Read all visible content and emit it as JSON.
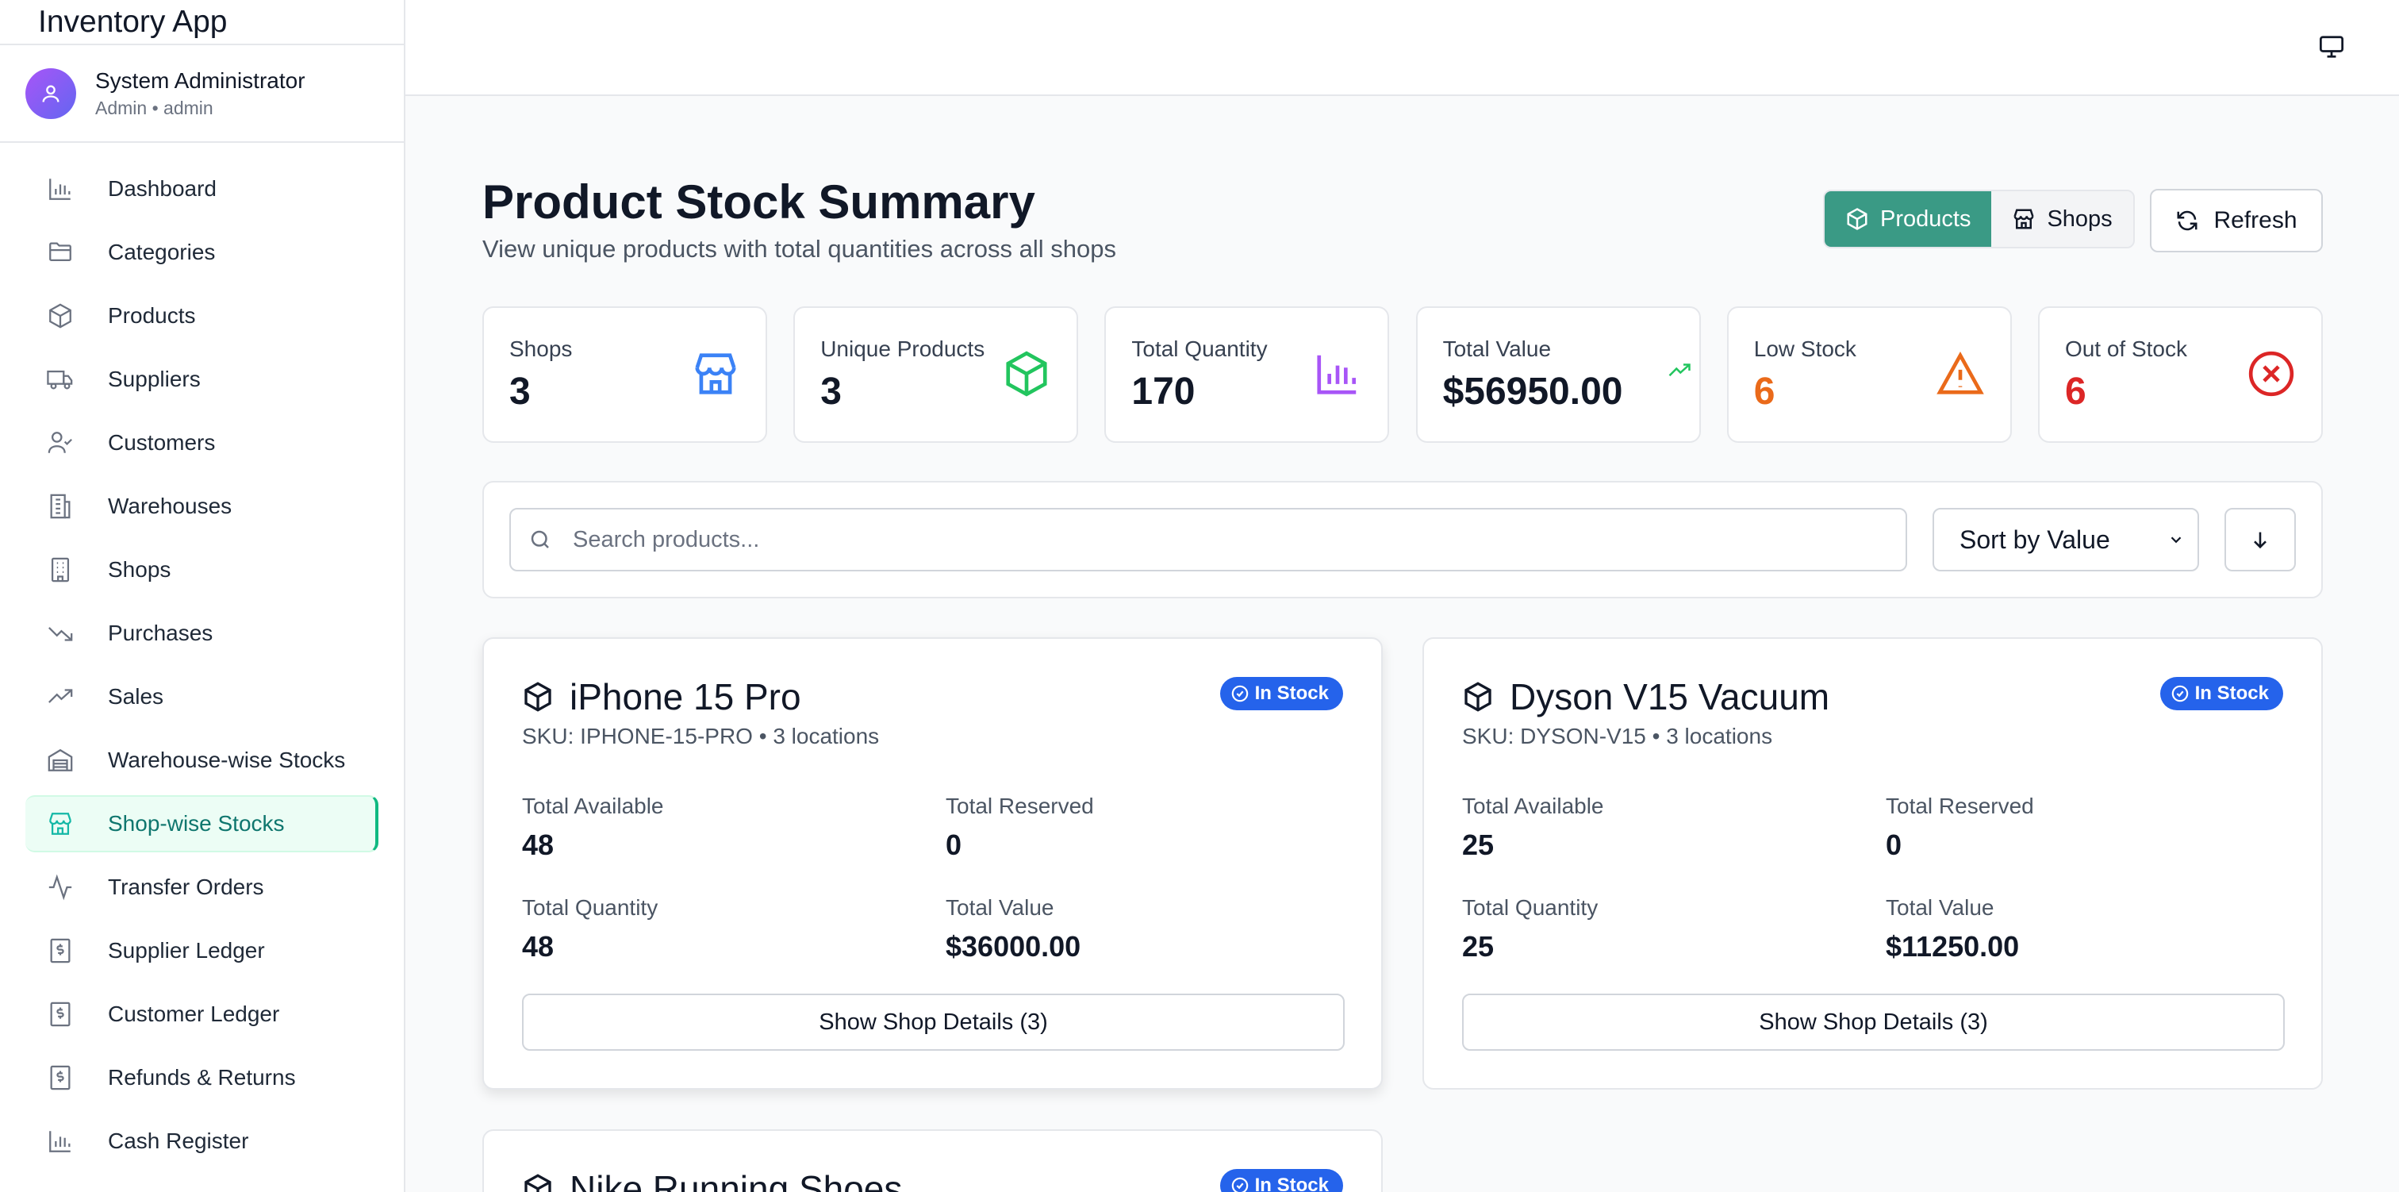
{
  "app": {
    "title": "Inventory App"
  },
  "user": {
    "name": "System Administrator",
    "role": "Admin • admin"
  },
  "sidebar": {
    "items": [
      {
        "label": "Dashboard",
        "icon": "bar-chart-icon"
      },
      {
        "label": "Categories",
        "icon": "folder-icon"
      },
      {
        "label": "Products",
        "icon": "package-icon"
      },
      {
        "label": "Suppliers",
        "icon": "truck-icon"
      },
      {
        "label": "Customers",
        "icon": "user-check-icon"
      },
      {
        "label": "Warehouses",
        "icon": "building-icon"
      },
      {
        "label": "Shops",
        "icon": "building-office-icon"
      },
      {
        "label": "Purchases",
        "icon": "trending-down-icon"
      },
      {
        "label": "Sales",
        "icon": "trending-up-icon"
      },
      {
        "label": "Warehouse-wise Stocks",
        "icon": "warehouse-icon"
      },
      {
        "label": "Shop-wise Stocks",
        "icon": "store-icon",
        "active": true
      },
      {
        "label": "Transfer Orders",
        "icon": "activity-icon"
      },
      {
        "label": "Supplier Ledger",
        "icon": "dollar-receipt-icon"
      },
      {
        "label": "Customer Ledger",
        "icon": "dollar-receipt-icon"
      },
      {
        "label": "Refunds & Returns",
        "icon": "dollar-receipt-icon"
      },
      {
        "label": "Cash Register",
        "icon": "bar-chart-icon"
      }
    ]
  },
  "page": {
    "title": "Product Stock Summary",
    "subtitle": "View unique products with total quantities across all shops"
  },
  "toolbar": {
    "products_label": "Products",
    "shops_label": "Shops",
    "refresh_label": "Refresh"
  },
  "stats": [
    {
      "label": "Shops",
      "value": "3",
      "icon": "store-icon",
      "color": "#3b82f6"
    },
    {
      "label": "Unique Products",
      "value": "3",
      "icon": "package-icon",
      "color": "#22c55e"
    },
    {
      "label": "Total Quantity",
      "value": "170",
      "icon": "bar-chart-icon",
      "color": "#a855f7"
    },
    {
      "label": "Total Value",
      "value": "$56950.00",
      "icon": "trending-up-icon",
      "color": "#22c55e"
    },
    {
      "label": "Low Stock",
      "value": "6",
      "icon": "warning-triangle-icon",
      "color": "#ea6a1a"
    },
    {
      "label": "Out of Stock",
      "value": "6",
      "icon": "x-circle-icon",
      "color": "#dc2626"
    }
  ],
  "search": {
    "placeholder": "Search products...",
    "value": ""
  },
  "sort": {
    "selected": "Sort by Value"
  },
  "products": [
    {
      "name": "iPhone 15 Pro",
      "sku_line": "SKU: IPHONE-15-PRO • 3 locations",
      "badge": "In Stock",
      "available_label": "Total Available",
      "available": "48",
      "reserved_label": "Total Reserved",
      "reserved": "0",
      "quantity_label": "Total Quantity",
      "quantity": "48",
      "value_label": "Total Value",
      "value": "$36000.00",
      "details_label": "Show Shop Details (3)"
    },
    {
      "name": "Dyson V15 Vacuum",
      "sku_line": "SKU: DYSON-V15 • 3 locations",
      "badge": "In Stock",
      "available_label": "Total Available",
      "available": "25",
      "reserved_label": "Total Reserved",
      "reserved": "0",
      "quantity_label": "Total Quantity",
      "quantity": "25",
      "value_label": "Total Value",
      "value": "$11250.00",
      "details_label": "Show Shop Details (3)"
    },
    {
      "name": "Nike Running Shoes",
      "badge": "In Stock"
    }
  ],
  "colors": {
    "accent": "#3a9a85",
    "badge": "#2563eb",
    "active_nav_bg": "#ecfdf5"
  }
}
